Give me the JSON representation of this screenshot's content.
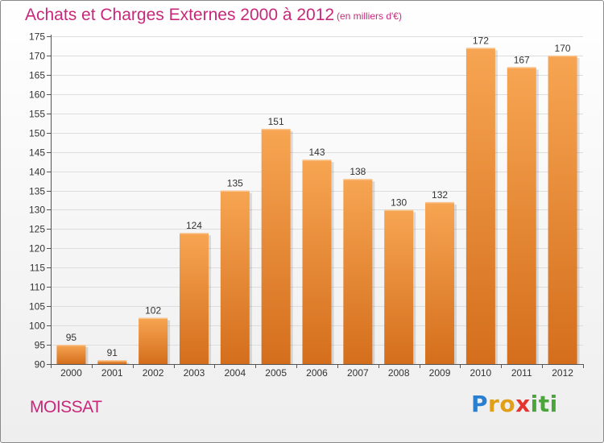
{
  "header": {
    "title": "Achats et Charges Externes 2000 à 2012",
    "subtitle": "(en milliers d'€)"
  },
  "footer": {
    "commune": "MOISSAT",
    "logo": [
      "P",
      "r",
      "o",
      "x",
      "i",
      "t",
      "i"
    ]
  },
  "colors": {
    "title": "#c8287a",
    "bar_top": "#f7a552",
    "bar_bottom": "#d46e1c",
    "grid": "#dddddd",
    "logo": [
      "#2a7fd0",
      "#e2a01a",
      "#e2a01a",
      "#e3342f",
      "#4aa63a",
      "#4aa63a",
      "#4aa63a"
    ]
  },
  "chart_data": {
    "type": "bar",
    "categories": [
      "2000",
      "2001",
      "2002",
      "2003",
      "2004",
      "2005",
      "2006",
      "2007",
      "2008",
      "2009",
      "2010",
      "2011",
      "2012"
    ],
    "values": [
      95,
      91,
      102,
      124,
      135,
      151,
      143,
      138,
      130,
      132,
      172,
      167,
      170
    ],
    "title": "Achats et Charges Externes 2000 à 2012",
    "ylim": [
      90,
      175
    ],
    "yticks": [
      90,
      95,
      100,
      105,
      110,
      115,
      120,
      125,
      130,
      135,
      140,
      145,
      150,
      155,
      160,
      165,
      170,
      175
    ],
    "grid": true
  }
}
